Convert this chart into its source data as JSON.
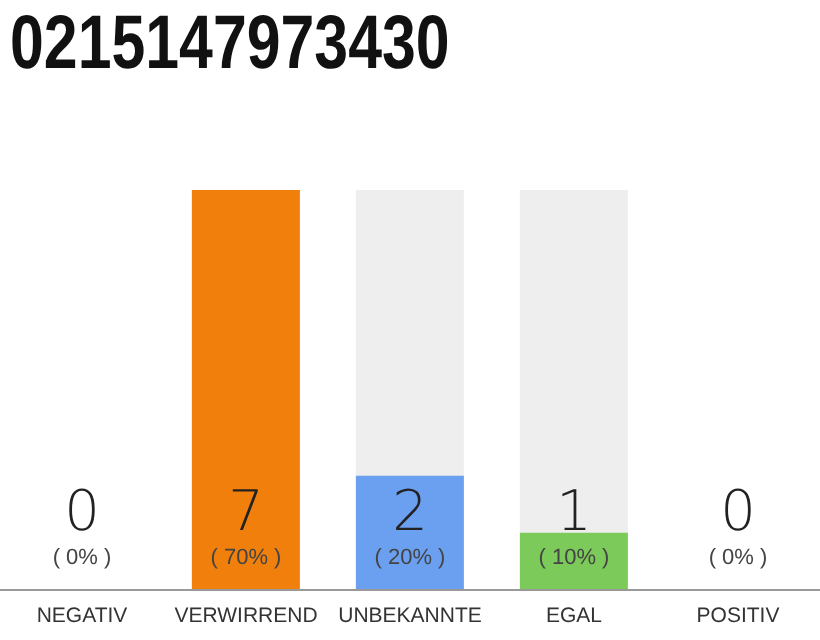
{
  "chart_data": {
    "type": "bar",
    "title": "0215147973430",
    "categories": [
      "NEGATIV",
      "VERWIRREND",
      "UNBEKANNTE",
      "EGAL",
      "POSITIV"
    ],
    "values": [
      0,
      7,
      2,
      1,
      0
    ],
    "colors": [
      "#eeeeee",
      "#f07f0c",
      "#6b9ff0",
      "#7ccb5a",
      "#eeeeee"
    ],
    "data_labels": true,
    "annotations": [
      "( 0% )",
      "( 70% )",
      "( 20% )",
      "( 10% )",
      "( 0% )"
    ],
    "grid": false,
    "legend": false
  }
}
